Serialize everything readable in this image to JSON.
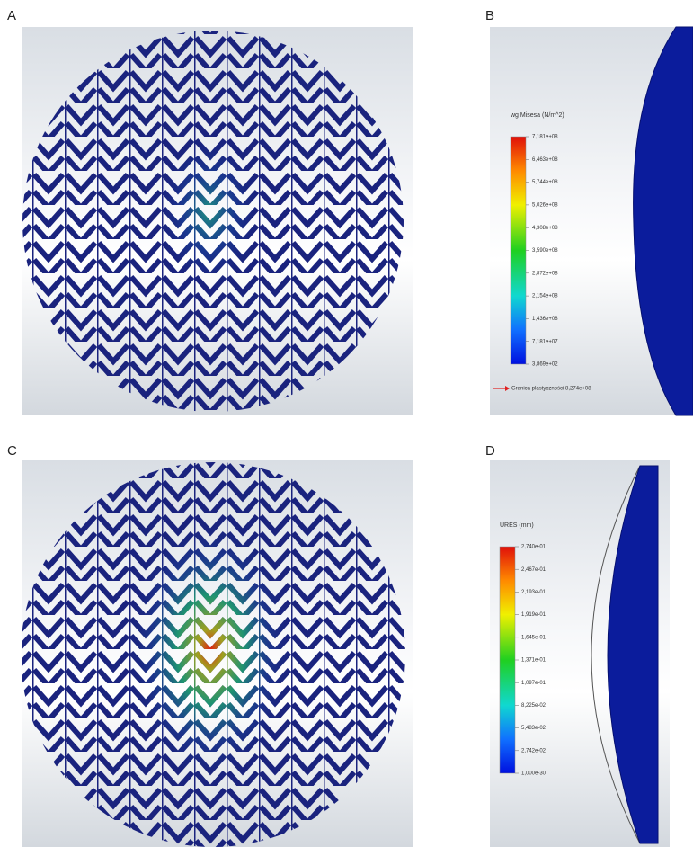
{
  "panels": [
    {
      "label": "A"
    },
    {
      "label": "B",
      "legend": {
        "title": "wg Misesa (N/m^2)",
        "labels": [
          "7,181e+08",
          "6,463e+08",
          "5,744e+08",
          "5,026e+08",
          "4,308e+08",
          "3,590e+08",
          "2,872e+08",
          "2,154e+08",
          "1,436e+08",
          "7,181e+07",
          "3,869e+02"
        ],
        "note": "Granica plastyczności 8,274e+08"
      }
    },
    {
      "label": "C"
    },
    {
      "label": "D",
      "legend": {
        "title": "URES (mm)",
        "labels": [
          "2,740e-01",
          "2,467e-01",
          "2,193e-01",
          "1,919e-01",
          "1,645e-01",
          "1,371e-01",
          "1,097e-01",
          "8,225e-02",
          "5,483e-02",
          "2,742e-02",
          "1,000e-30"
        ]
      }
    }
  ]
}
